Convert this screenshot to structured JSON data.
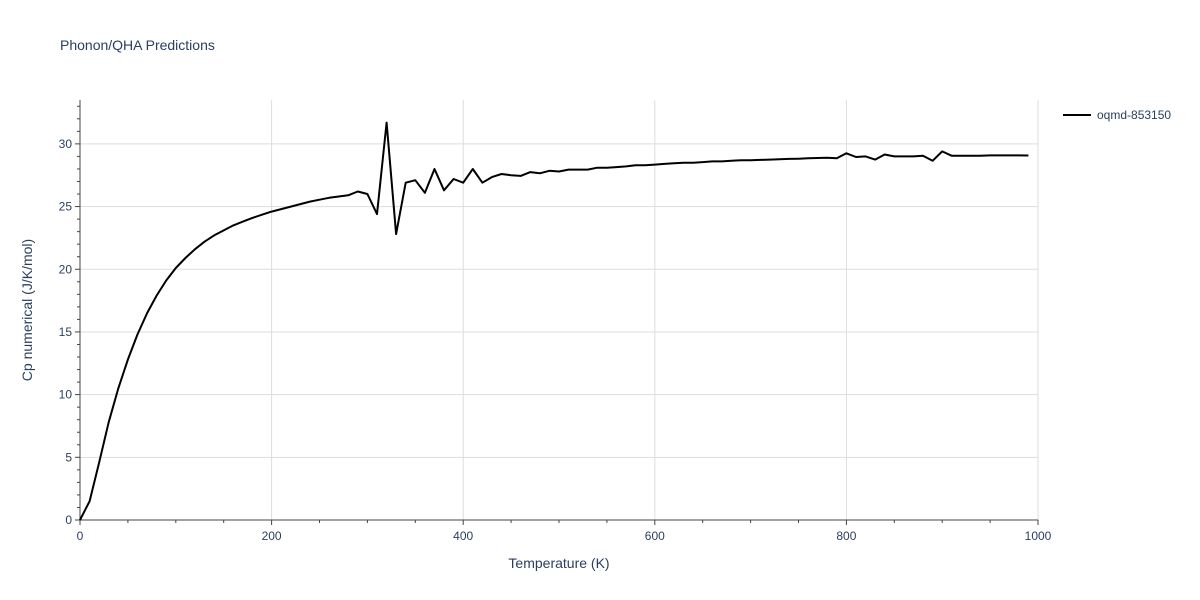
{
  "chart_data": {
    "type": "line",
    "title": "Phonon/QHA Predictions",
    "xlabel": "Temperature (K)",
    "ylabel": "Cp numerical (J/K/mol)",
    "xlim": [
      0,
      1000
    ],
    "ylim": [
      0,
      33.5
    ],
    "x_ticks": [
      0,
      200,
      400,
      600,
      800,
      1000
    ],
    "y_ticks": [
      0,
      5,
      10,
      15,
      20,
      25,
      30
    ],
    "grid": true,
    "legend_position": "top-right",
    "series": [
      {
        "name": "oqmd-853150",
        "color": "#000000",
        "x": [
          0,
          10,
          20,
          30,
          40,
          50,
          60,
          70,
          80,
          90,
          100,
          110,
          120,
          130,
          140,
          150,
          160,
          170,
          180,
          190,
          200,
          210,
          220,
          230,
          240,
          250,
          260,
          270,
          280,
          290,
          300,
          310,
          320,
          330,
          340,
          350,
          360,
          370,
          380,
          390,
          400,
          410,
          420,
          430,
          440,
          450,
          460,
          470,
          480,
          490,
          500,
          510,
          520,
          530,
          540,
          550,
          560,
          570,
          580,
          590,
          600,
          610,
          620,
          630,
          640,
          650,
          660,
          670,
          680,
          690,
          700,
          710,
          720,
          730,
          740,
          750,
          760,
          770,
          780,
          790,
          800,
          810,
          820,
          830,
          840,
          850,
          860,
          870,
          880,
          890,
          900,
          910,
          920,
          930,
          940,
          950,
          960,
          970,
          980,
          990
        ],
        "y": [
          0,
          1.5,
          4.6,
          7.8,
          10.5,
          12.8,
          14.8,
          16.5,
          17.9,
          19.1,
          20.1,
          20.9,
          21.6,
          22.2,
          22.7,
          23.1,
          23.5,
          23.8,
          24.1,
          24.35,
          24.6,
          24.8,
          25.0,
          25.2,
          25.4,
          25.55,
          25.7,
          25.8,
          25.9,
          26.2,
          26.0,
          24.4,
          31.7,
          22.8,
          26.9,
          27.1,
          26.1,
          28.0,
          26.3,
          27.2,
          26.9,
          28.0,
          26.9,
          27.35,
          27.6,
          27.5,
          27.45,
          27.75,
          27.65,
          27.85,
          27.8,
          27.95,
          27.95,
          27.95,
          28.1,
          28.1,
          28.15,
          28.2,
          28.3,
          28.3,
          28.35,
          28.4,
          28.45,
          28.5,
          28.5,
          28.55,
          28.6,
          28.6,
          28.65,
          28.7,
          28.7,
          28.72,
          28.75,
          28.78,
          28.8,
          28.82,
          28.85,
          28.87,
          28.9,
          28.85,
          29.25,
          28.95,
          29.0,
          28.75,
          29.15,
          29.0,
          29.0,
          29.0,
          29.05,
          28.65,
          29.4,
          29.05,
          29.05,
          29.05,
          29.05,
          29.08,
          29.08,
          29.08,
          29.08,
          29.07
        ]
      }
    ]
  }
}
